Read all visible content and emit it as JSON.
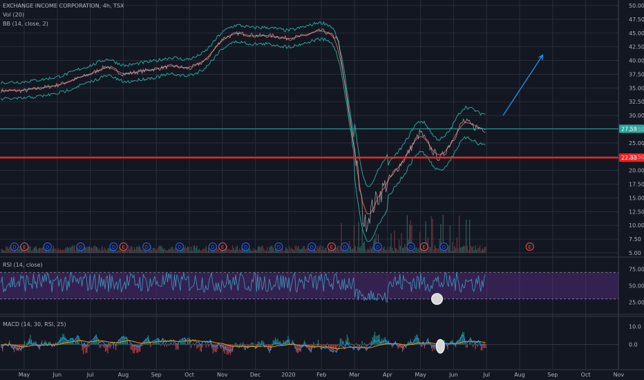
{
  "header": {
    "symbol_line": "EXCHANGE INCOME CORPORATION, 4h, TSX",
    "volume_label": "Vol (20)",
    "bb_label": "BB (14, close, 2)"
  },
  "panes": {
    "rsi_label": "RSI (14, close)",
    "macd_label": "MACD (14, 30, RSI, 25)"
  },
  "colors": {
    "background": "#131722",
    "grid": "#2a2e39",
    "price": "#26a69a",
    "bb_ma": "#e05a5a",
    "support_line": "#ff1f1f",
    "level_line": "#26a69a",
    "arrow": "#2196f3",
    "rsi_band": "#5b2e8a",
    "macd_line": "#2196f3",
    "signal_line": "#ff9800"
  },
  "chart_data": {
    "type": "line",
    "x_ticks": [
      "May",
      "Jun",
      "Jul",
      "Aug",
      "Sep",
      "Oct",
      "Nov",
      "Dec",
      "2020",
      "Feb",
      "Mar",
      "Apr",
      "May",
      "Jun",
      "Jul",
      "Aug",
      "Sep",
      "Oct",
      "Nov"
    ],
    "price_axis": {
      "ticks": [
        "50.00",
        "47.50",
        "45.00",
        "42.50",
        "40.00",
        "37.50",
        "35.00",
        "32.50",
        "30.00",
        "27.50",
        "25.00",
        "22.50",
        "20.00",
        "17.50",
        "15.00",
        "12.50",
        "10.00",
        "7.50",
        "5.00"
      ],
      "ylim": [
        5,
        50
      ]
    },
    "price_series": {
      "x": [
        0,
        0.5,
        1,
        1.5,
        2,
        2.5,
        3,
        3.5,
        4,
        4.5,
        5,
        5.5,
        6,
        6.5,
        7,
        7.5,
        8,
        8.5,
        9,
        9.5,
        10,
        10.3,
        10.6,
        11,
        11.5,
        12,
        12.3,
        12.6,
        13,
        13.3,
        13.6,
        14
      ],
      "y": [
        34.5,
        35,
        35.5,
        36.5,
        37.5,
        39,
        37.5,
        38,
        38.5,
        39,
        38.5,
        40,
        44,
        45,
        44.5,
        44.5,
        44,
        44.5,
        45.5,
        44,
        24,
        10,
        14,
        18,
        22,
        27,
        24,
        22,
        26,
        29,
        28,
        27.6
      ]
    },
    "rsi_axis": {
      "ticks": [
        "75.00",
        "50.00",
        "25.00"
      ],
      "ylim": [
        10,
        90
      ],
      "band": [
        30,
        70
      ]
    },
    "macd_axis": {
      "ticks": [
        "10.0",
        "0.0"
      ],
      "ylim": [
        -12,
        14
      ]
    },
    "levels": [
      {
        "name": "last-price",
        "value": 27.58,
        "label": "27.58"
      },
      {
        "name": "support",
        "value": 22.33,
        "label": "22.33"
      }
    ],
    "arrow": {
      "from": {
        "x": 14.5,
        "y": 30
      },
      "to": {
        "x": 15.7,
        "y": 41
      }
    },
    "earnings_markers": [
      {
        "x": 0,
        "type": "D"
      },
      {
        "x": 0.3,
        "type": "E"
      },
      {
        "x": 1,
        "type": "D"
      },
      {
        "x": 2,
        "type": "D"
      },
      {
        "x": 3,
        "type": "D"
      },
      {
        "x": 3.3,
        "type": "E"
      },
      {
        "x": 4,
        "type": "D"
      },
      {
        "x": 5,
        "type": "D"
      },
      {
        "x": 6,
        "type": "D"
      },
      {
        "x": 6.3,
        "type": "E"
      },
      {
        "x": 7,
        "type": "D"
      },
      {
        "x": 8,
        "type": "D"
      },
      {
        "x": 9,
        "type": "D"
      },
      {
        "x": 9.6,
        "type": "E"
      },
      {
        "x": 10,
        "type": "D"
      },
      {
        "x": 11,
        "type": "D"
      },
      {
        "x": 12,
        "type": "D"
      },
      {
        "x": 12.4,
        "type": "E"
      },
      {
        "x": 13,
        "type": "D"
      },
      {
        "x": 15.6,
        "type": "E"
      }
    ]
  }
}
